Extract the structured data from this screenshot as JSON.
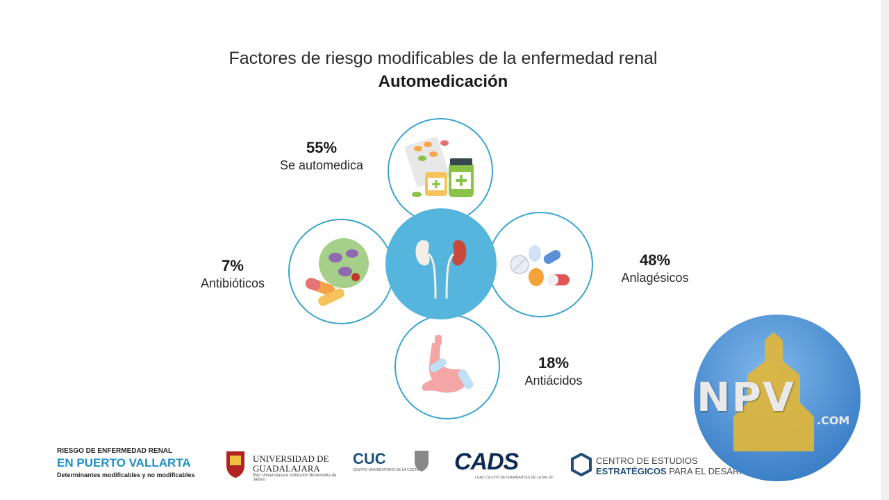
{
  "header": {
    "title": "Factores de riesgo modificables de la enfermedad renal",
    "subtitle": "Automedicación"
  },
  "stats": [
    {
      "id": "automedica",
      "percent": "55%",
      "label": "Se automedica",
      "icon": "medicines-icon"
    },
    {
      "id": "antibioticos",
      "percent": "7%",
      "label": "Antibióticos",
      "icon": "bacteria-pills-icon"
    },
    {
      "id": "analgesicos",
      "percent": "48%",
      "label": "Anlagésicos",
      "icon": "pills-icon"
    },
    {
      "id": "antiacidos",
      "percent": "18%",
      "label": "Antiácidos",
      "icon": "stomach-icon"
    }
  ],
  "center": {
    "icon": "kidneys-icon"
  },
  "footer": {
    "rer": {
      "line1": "RIESGO DE ENFERMEDAD RENAL",
      "line2": "EN PUERTO VALLARTA",
      "line3": "Determinantes modificables y no modificables"
    },
    "udg": {
      "line1": "UNIVERSIDAD DE",
      "line2": "GUADALAJARA",
      "line3": "Red Universitaria e Institución Benemérita de Jalisco"
    },
    "cuc": {
      "name": "CUC",
      "small": "CENTRO UNIVERSITARIO DE LA COSTA"
    },
    "cads": {
      "name": "CADS",
      "small": "LGAC-CA-1070 DETERMINANTES DE LA SALUD"
    },
    "ceed": {
      "line1": "CENTRO DE ESTUDIOS",
      "line2_bold": "ESTRATÉGICOS",
      "line2_rest": " PARA EL DESARROLLO"
    }
  },
  "watermark": {
    "main": "NPV",
    "suffix": ".COM"
  },
  "colors": {
    "accent": "#3aa3d1",
    "center": "#55b5dd",
    "brand_blue": "#1d8fc8"
  }
}
